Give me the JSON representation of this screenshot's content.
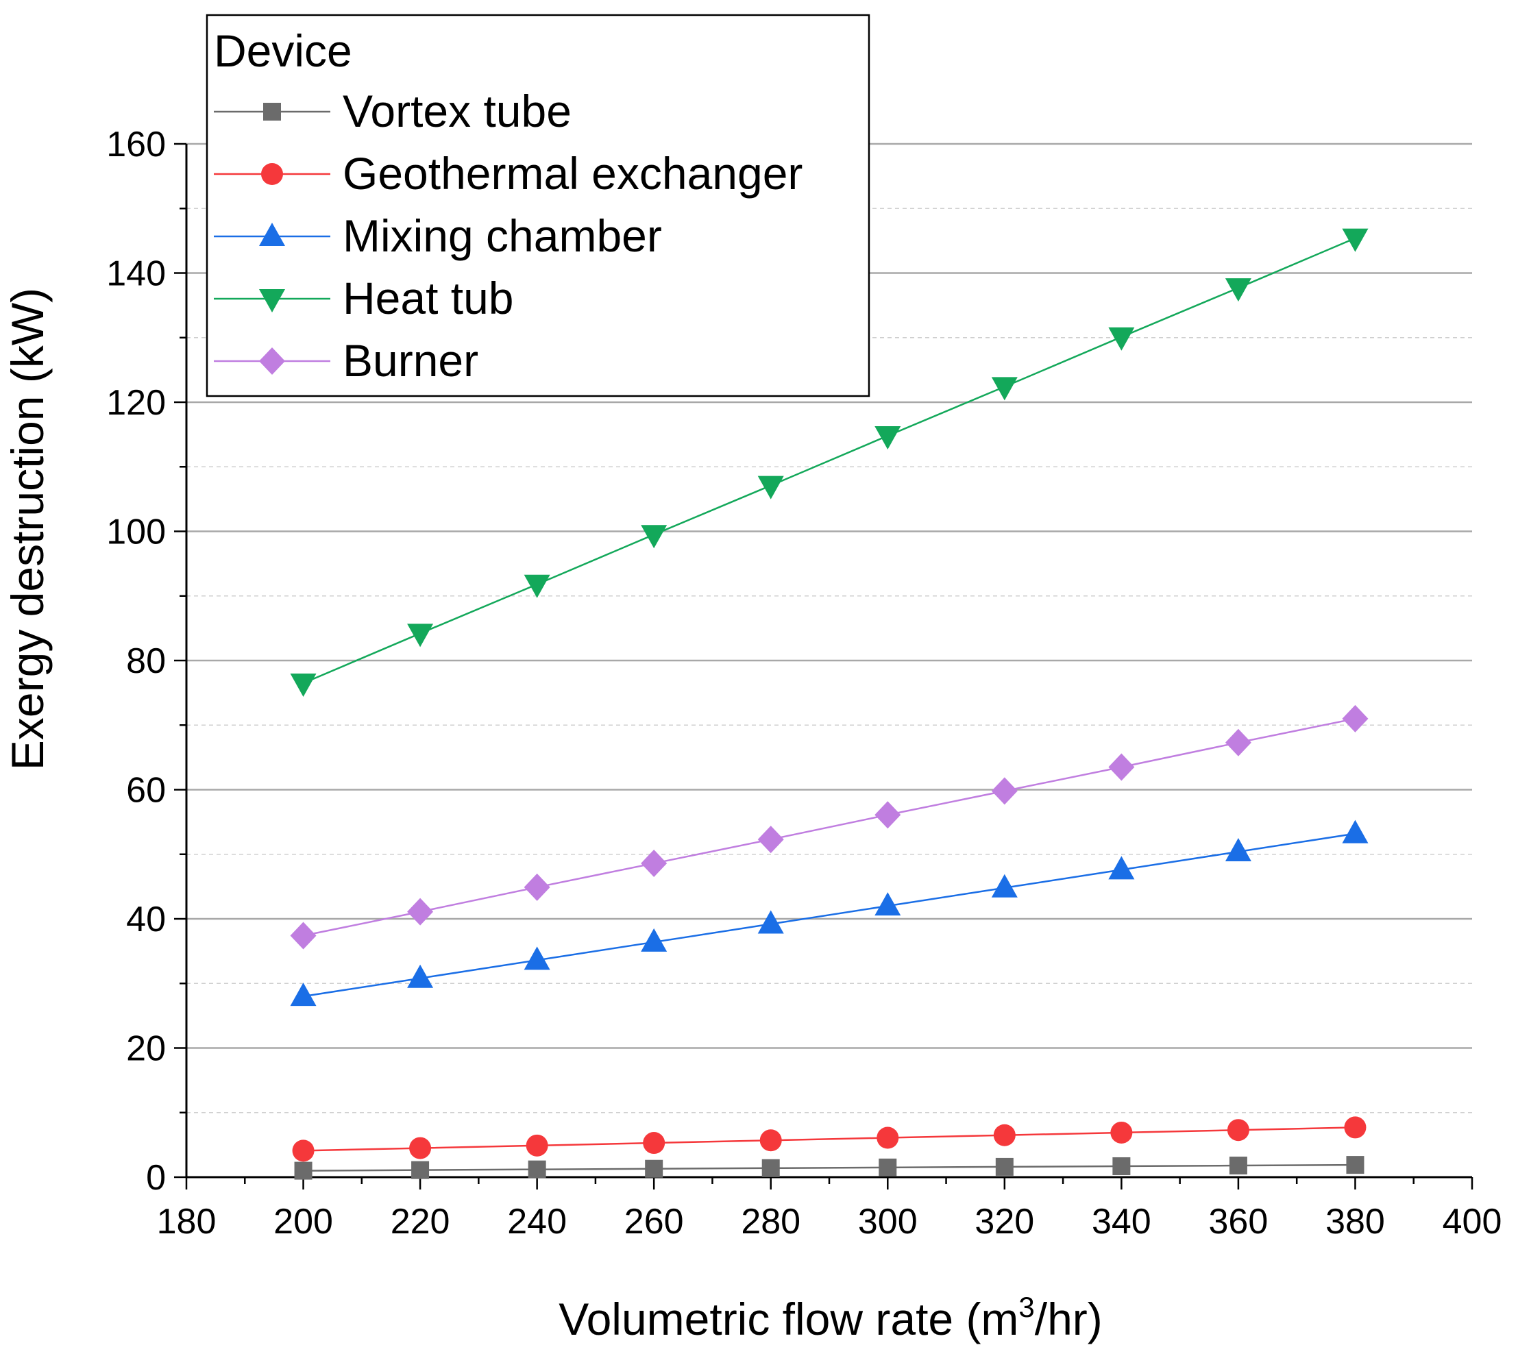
{
  "chart_data": {
    "type": "line",
    "title": "",
    "xlabel": "Volumetric flow rate (m",
    "xlabel_sup": "3",
    "xlabel_tail": "/hr)",
    "ylabel": "Exergy destruction (kW)",
    "xlim": [
      180,
      400
    ],
    "ylim": [
      0,
      160
    ],
    "x_ticks": [
      "180",
      "200",
      "220",
      "240",
      "260",
      "280",
      "300",
      "320",
      "340",
      "360",
      "380",
      "400"
    ],
    "y_ticks": [
      "0",
      "20",
      "40",
      "60",
      "80",
      "100",
      "120",
      "140",
      "160"
    ],
    "grid": "horizontal major solid, minor dashed",
    "legend_title": "Device",
    "legend_position": "top-left",
    "x": [
      200,
      220,
      240,
      260,
      280,
      300,
      320,
      340,
      360,
      380
    ],
    "series": [
      {
        "name": "Vortex tube",
        "marker": "square",
        "color": "#6b6b6b",
        "values": [
          1.0,
          1.1,
          1.2,
          1.3,
          1.4,
          1.5,
          1.6,
          1.7,
          1.8,
          1.9
        ]
      },
      {
        "name": "Geothermal exchanger",
        "marker": "circle",
        "color": "#f5383b",
        "values": [
          4.1,
          4.5,
          4.9,
          5.3,
          5.7,
          6.1,
          6.5,
          6.9,
          7.3,
          7.7
        ]
      },
      {
        "name": "Mixing chamber",
        "marker": "triangle-up",
        "color": "#1a6ee6",
        "values": [
          28.0,
          30.8,
          33.6,
          36.4,
          39.2,
          42.0,
          44.8,
          47.6,
          50.4,
          53.2
        ]
      },
      {
        "name": "Heat tub",
        "marker": "triangle-down",
        "color": "#13a85a",
        "values": [
          76.5,
          84.2,
          91.8,
          99.5,
          107.1,
          114.8,
          122.4,
          130.1,
          137.7,
          145.4
        ]
      },
      {
        "name": "Burner",
        "marker": "diamond",
        "color": "#c07ee0",
        "values": [
          37.4,
          41.1,
          44.9,
          48.6,
          52.3,
          56.1,
          59.8,
          63.5,
          67.3,
          71.0
        ]
      }
    ]
  }
}
